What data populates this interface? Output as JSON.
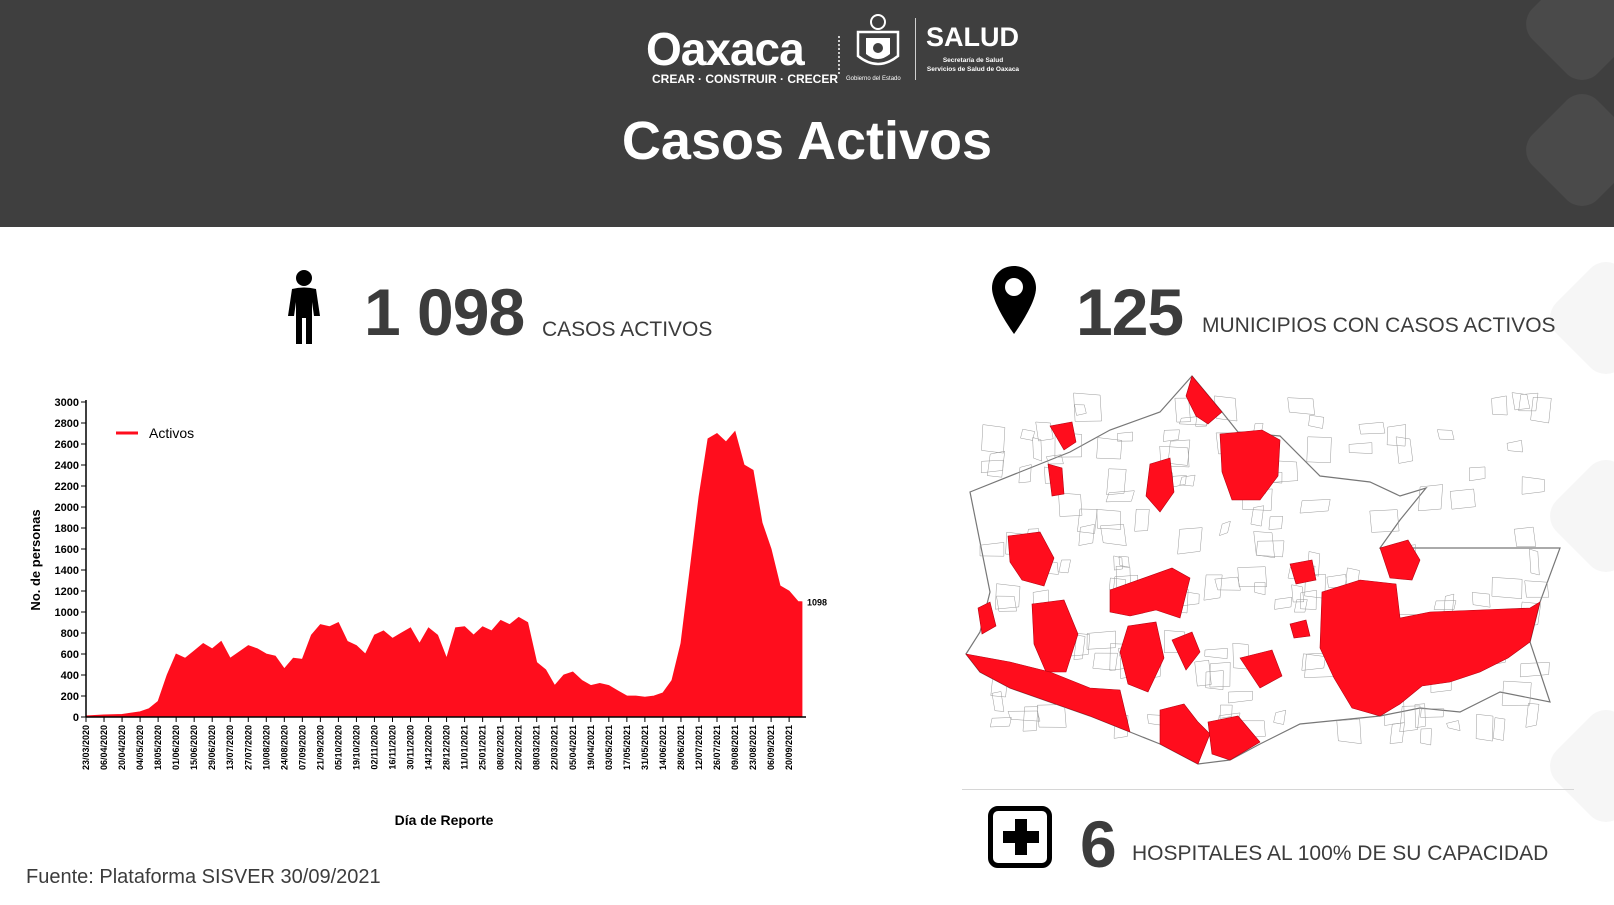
{
  "header": {
    "brand_word": "Oaxaca",
    "brand_tagline": "CREAR · CONSTRUIR · CRECER",
    "seal_caption": "Gobierno del Estado",
    "salud": "SALUD",
    "salud_sub1": "Secretaría de Salud",
    "salud_sub2": "Servicios de Salud de Oaxaca",
    "title": "Casos Activos",
    "background": "#3f3f3f"
  },
  "stats": {
    "active_cases": {
      "value": "1 098",
      "label": "CASOS ACTIVOS",
      "icon": "person-icon"
    },
    "municipalities": {
      "value": "125",
      "label": "MUNICIPIOS CON CASOS ACTIVOS",
      "icon": "map-pin-icon"
    },
    "hospitals": {
      "value": "6",
      "label": "HOSPITALES AL 100% DE SU CAPACIDAD",
      "icon": "hospital-cross-icon"
    }
  },
  "footer": {
    "source": "Fuente: Plataforma SISVER  30/09/2021"
  },
  "colors": {
    "accent_red": "#ff0d1d",
    "text_dark": "#3c3c3c"
  },
  "chart_data": {
    "type": "area",
    "title": "",
    "xlabel": "Día de Reporte",
    "ylabel": "No. de personas",
    "ylim": [
      0,
      3000
    ],
    "yticks": [
      0,
      200,
      400,
      600,
      800,
      1000,
      1200,
      1400,
      1600,
      1800,
      2000,
      2200,
      2400,
      2600,
      2800,
      3000
    ],
    "xticks": [
      "23/03/2020",
      "06/04/2020",
      "20/04/2020",
      "04/05/2020",
      "18/05/2020",
      "01/06/2020",
      "15/06/2020",
      "29/06/2020",
      "13/07/2020",
      "27/07/2020",
      "10/08/2020",
      "24/08/2020",
      "07/09/2020",
      "21/09/2020",
      "05/10/2020",
      "19/10/2020",
      "02/11/2020",
      "16/11/2020",
      "30/11/2020",
      "14/12/2020",
      "28/12/2020",
      "11/01/2021",
      "25/01/2021",
      "08/02/2021",
      "22/02/2021",
      "08/03/2021",
      "22/03/2021",
      "05/04/2021",
      "19/04/2021",
      "03/05/2021",
      "17/05/2021",
      "31/05/2021",
      "14/06/2021",
      "28/06/2021",
      "12/07/2021",
      "26/07/2021",
      "09/08/2021",
      "23/08/2021",
      "06/09/2021",
      "20/09/2021"
    ],
    "legend": {
      "position": "top-left",
      "entries": [
        "Activos"
      ]
    },
    "grid": false,
    "annotation": {
      "text": "1098",
      "value": 1098
    },
    "series": [
      {
        "name": "Activos",
        "color": "#ff0d1d",
        "x": [
          "23/03/2020",
          "06/04/2020",
          "20/04/2020",
          "04/05/2020",
          "11/05/2020",
          "18/05/2020",
          "25/05/2020",
          "01/06/2020",
          "08/06/2020",
          "15/06/2020",
          "22/06/2020",
          "29/06/2020",
          "06/07/2020",
          "13/07/2020",
          "20/07/2020",
          "27/07/2020",
          "03/08/2020",
          "10/08/2020",
          "17/08/2020",
          "24/08/2020",
          "31/08/2020",
          "07/09/2020",
          "14/09/2020",
          "21/09/2020",
          "28/09/2020",
          "05/10/2020",
          "12/10/2020",
          "19/10/2020",
          "26/10/2020",
          "02/11/2020",
          "09/11/2020",
          "16/11/2020",
          "23/11/2020",
          "30/11/2020",
          "07/12/2020",
          "14/12/2020",
          "21/12/2020",
          "28/12/2020",
          "04/01/2021",
          "11/01/2021",
          "18/01/2021",
          "25/01/2021",
          "01/02/2021",
          "08/02/2021",
          "15/02/2021",
          "22/02/2021",
          "01/03/2021",
          "08/03/2021",
          "15/03/2021",
          "22/03/2021",
          "29/03/2021",
          "05/04/2021",
          "12/04/2021",
          "19/04/2021",
          "26/04/2021",
          "03/05/2021",
          "10/05/2021",
          "17/05/2021",
          "24/05/2021",
          "31/05/2021",
          "07/06/2021",
          "14/06/2021",
          "21/06/2021",
          "28/06/2021",
          "05/07/2021",
          "12/07/2021",
          "19/07/2021",
          "26/07/2021",
          "02/08/2021",
          "09/08/2021",
          "16/08/2021",
          "23/08/2021",
          "30/08/2021",
          "06/09/2021",
          "13/09/2021",
          "20/09/2021",
          "27/09/2021",
          "30/09/2021"
        ],
        "values": [
          10,
          20,
          25,
          50,
          80,
          150,
          400,
          600,
          560,
          630,
          700,
          650,
          720,
          560,
          620,
          680,
          650,
          600,
          580,
          460,
          560,
          550,
          780,
          880,
          860,
          900,
          720,
          680,
          600,
          780,
          820,
          750,
          800,
          850,
          700,
          850,
          780,
          560,
          850,
          860,
          780,
          860,
          820,
          920,
          880,
          950,
          900,
          520,
          450,
          300,
          400,
          430,
          350,
          300,
          320,
          300,
          250,
          200,
          200,
          190,
          200,
          230,
          350,
          700,
          1400,
          2100,
          2650,
          2700,
          2620,
          2720,
          2400,
          2350,
          1850,
          1600,
          1250,
          1200,
          1100,
          1098
        ]
      }
    ]
  }
}
